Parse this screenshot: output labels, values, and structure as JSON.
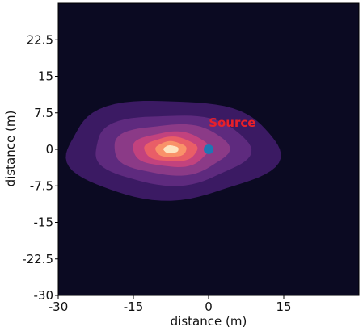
{
  "chart_data": {
    "type": "contour",
    "xlabel": "distance (m)",
    "ylabel": "distance (m)",
    "xlim": [
      -30,
      30
    ],
    "ylim": [
      -30,
      30
    ],
    "x_ticks": [
      -30,
      -15,
      0,
      15
    ],
    "x_tick_labels": [
      "-30",
      "-15",
      "0",
      "15"
    ],
    "y_ticks": [
      -30,
      -22.5,
      -15,
      -7.5,
      0,
      7.5,
      15,
      22.5
    ],
    "y_tick_labels": [
      "-30",
      "-22.5",
      "-15",
      "-7.5",
      "0",
      "7.5",
      "15",
      "22.5"
    ],
    "grid": false,
    "background_color": "#0b0a22",
    "plume_center": [
      -7.5,
      0
    ],
    "contour_levels": [
      {
        "level": 1,
        "color": "#3b1a63",
        "rx": 21.2,
        "ry": 10.2
      },
      {
        "level": 2,
        "color": "#5e2a7e",
        "rx": 15.5,
        "ry": 7.2
      },
      {
        "level": 3,
        "color": "#8b3a87",
        "rx": 11.5,
        "ry": 5.2
      },
      {
        "level": 4,
        "color": "#c2427e",
        "rx": 7.6,
        "ry": 3.6
      },
      {
        "level": 5,
        "color": "#e95e67",
        "rx": 5.3,
        "ry": 2.5
      },
      {
        "level": 6,
        "color": "#f99269",
        "rx": 3.1,
        "ry": 1.6
      },
      {
        "level": 7,
        "color": "#fde4c0",
        "rx": 1.5,
        "ry": 0.8
      }
    ],
    "source_marker": {
      "x": 0,
      "y": 0,
      "color": "#1f77b4"
    },
    "annotation": {
      "text": "Source",
      "x": 1.0,
      "y": 5.5,
      "color": "#e8202a"
    }
  }
}
